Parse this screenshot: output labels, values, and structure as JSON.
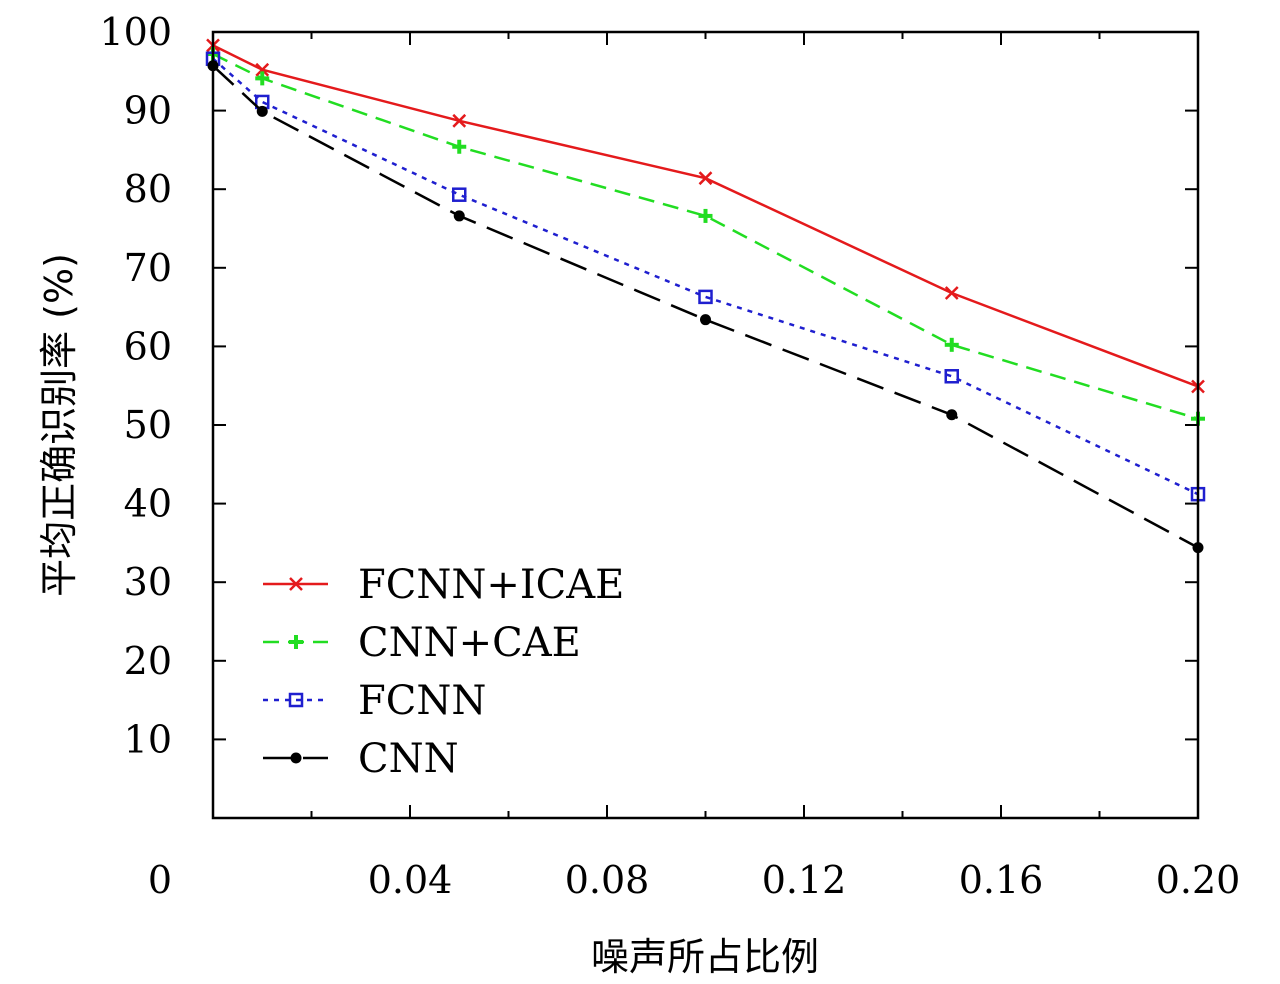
{
  "chart_data": {
    "type": "line",
    "xlabel": "噪声所占比例",
    "ylabel": "平均正确识别率 (%)",
    "xlim": [
      0,
      0.2
    ],
    "ylim": [
      0,
      100
    ],
    "x_ticks": [
      0,
      0.04,
      0.08,
      0.12,
      0.16,
      0.2
    ],
    "x_tick_labels": [
      "0",
      "0.04",
      "0.08",
      "0.12",
      "0.16",
      "0.20"
    ],
    "x_minor_ticks": [
      0.02,
      0.06,
      0.1,
      0.14,
      0.18
    ],
    "y_ticks": [
      10,
      20,
      30,
      40,
      50,
      60,
      70,
      80,
      90,
      100
    ],
    "y_tick_labels": [
      "10",
      "20",
      "30",
      "40",
      "50",
      "60",
      "70",
      "80",
      "90",
      "100"
    ],
    "grid": false,
    "legend_position": "bottom-left",
    "x": [
      0,
      0.01,
      0.05,
      0.1,
      0.15,
      0.2
    ],
    "series": [
      {
        "name": "FCNN+ICAE",
        "values": [
          98.3,
          95.2,
          88.7,
          81.4,
          66.8,
          54.9
        ],
        "color": "#e41a1c",
        "dash": "none",
        "marker": "x"
      },
      {
        "name": "CNN+CAE",
        "values": [
          97.2,
          94.1,
          85.4,
          76.6,
          60.2,
          50.8
        ],
        "color": "#22dd22",
        "dash": "16,9",
        "marker": "plus"
      },
      {
        "name": "FCNN",
        "values": [
          96.6,
          91.1,
          79.3,
          66.3,
          56.2,
          41.2
        ],
        "color": "#1f1fcf",
        "dash": "5,6",
        "marker": "square"
      },
      {
        "name": "CNN",
        "values": [
          95.7,
          89.9,
          76.6,
          63.4,
          51.3,
          34.4
        ],
        "color": "#000000",
        "dash": "28,12",
        "marker": "dot"
      }
    ]
  }
}
